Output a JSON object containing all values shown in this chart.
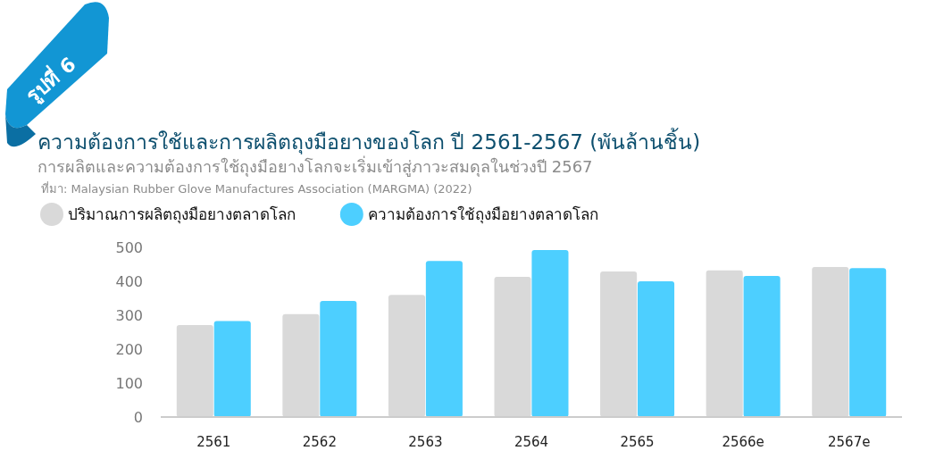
{
  "chart_data": {
    "type": "bar",
    "title": "ความต้องการใช้และการผลิตถุงมือยางของโลก ปี 2561-2567 (พันล้านชิ้น)",
    "subtitle": "การผลิตและความต้องการใช้ถุงมือยางโลกจะเริ่มเข้าสู่ภาวะสมดุลในช่วงปี 2567",
    "annotations": [
      "รูปที่ 6",
      "ที่มา: Malaysian Rubber Glove Manufactures Association (MARGMA) (2022)"
    ],
    "categories": [
      "2561",
      "2562",
      "2563",
      "2564",
      "2565",
      "2566e",
      "2567e"
    ],
    "series": [
      {
        "name": "ปริมาณการผลิตถุงมือยางตลาดโลก",
        "color": "#d9d9d9",
        "values": [
          271,
          303,
          360,
          413,
          429,
          432,
          442
        ]
      },
      {
        "name": "ความต้องการใช้ถุงมือยางตลาดโลก",
        "color": "#4dcfff",
        "values": [
          283,
          342,
          460,
          492,
          400,
          416,
          439
        ]
      }
    ],
    "ylim": [
      0,
      500
    ],
    "yticks": [
      0,
      100,
      200,
      300,
      400,
      500
    ],
    "grid": false,
    "legend": "top left"
  }
}
